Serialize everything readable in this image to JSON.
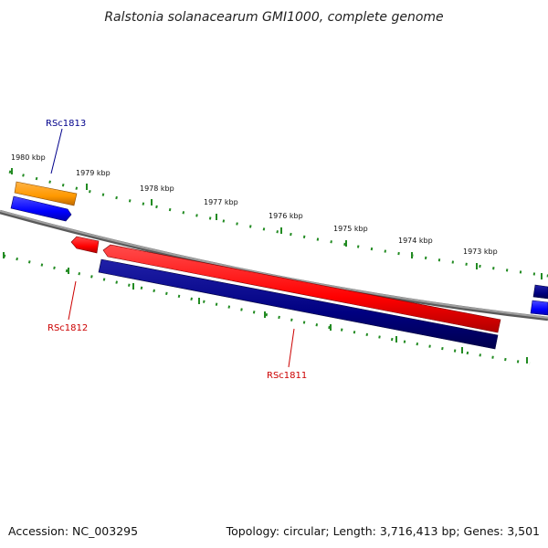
{
  "title": "Ralstonia solanacearum GMI1000, complete genome",
  "footer": {
    "accession": "Accession: NC_003295",
    "summary": "Topology: circular; Length: 3,716,413 bp; Genes: 3,501"
  },
  "ruler": {
    "ticks": [
      "1980 kbp",
      "1979 kbp",
      "1978 kbp",
      "1977 kbp",
      "1976 kbp",
      "1975 kbp",
      "1974 kbp",
      "1973 kbp"
    ]
  },
  "genes": [
    {
      "name": "RSc1813",
      "color": "#00008b"
    },
    {
      "name": "RSc1812",
      "color": "#cc0000"
    },
    {
      "name": "RSc1811",
      "color": "#cc0000"
    }
  ],
  "colors": {
    "backbone": "#808080",
    "tick": "#228b22",
    "orange": "#ff9900",
    "blue": "#0000ff",
    "red": "#ff0000",
    "navy": "#000080"
  }
}
